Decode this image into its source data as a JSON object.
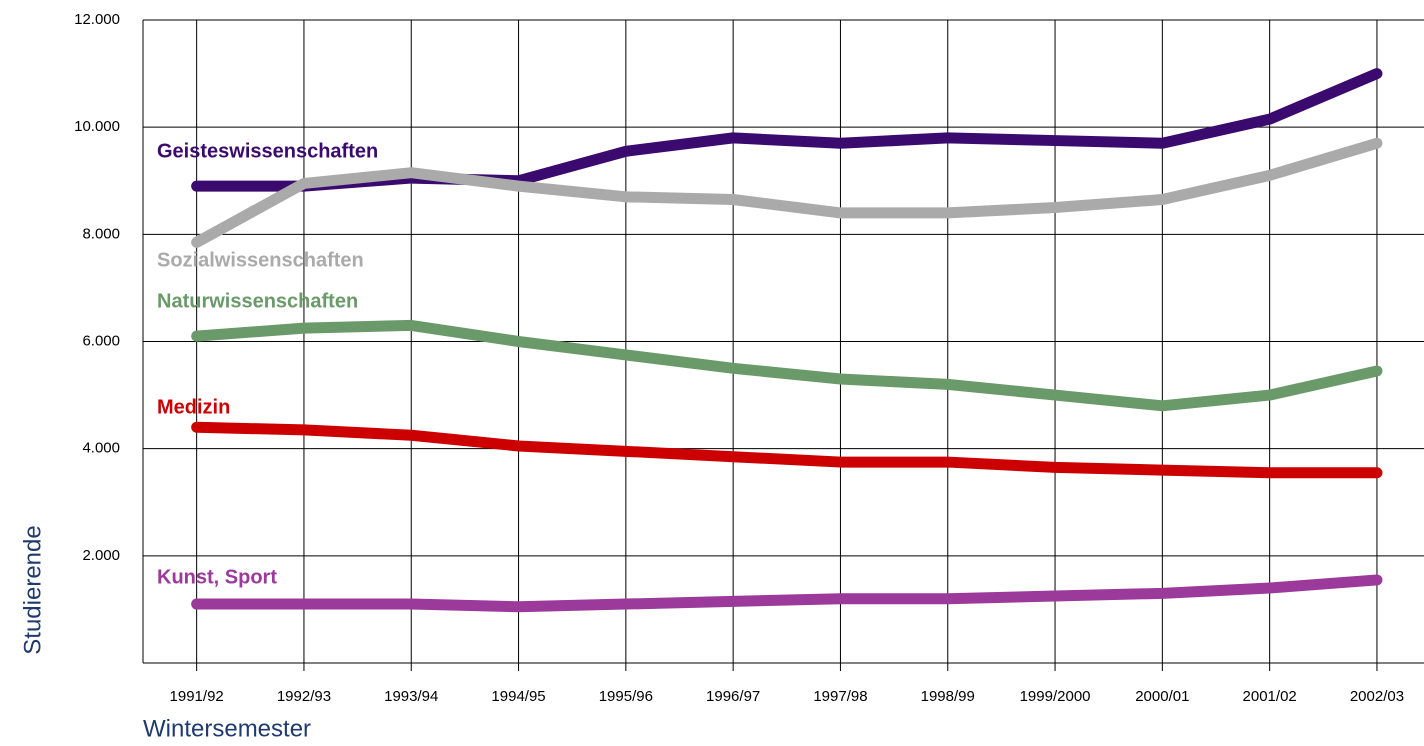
{
  "chart_data": {
    "type": "line",
    "x_label": "Wintersemester",
    "y_label": "Studierende",
    "categories": [
      "1991/92",
      "1992/93",
      "1993/94",
      "1994/95",
      "1995/96",
      "1996/97",
      "1997/98",
      "1998/99",
      "1999/2000",
      "2000/01",
      "2001/02",
      "2002/03"
    ],
    "series": [
      {
        "name": "Geisteswissenschaften",
        "color": "#3a0a6e",
        "values": [
          8900,
          8900,
          9050,
          9000,
          9550,
          9800,
          9700,
          9800,
          9750,
          9700,
          10150,
          11000
        ]
      },
      {
        "name": "Sozialwissenschaften",
        "color": "#aaaaaa",
        "values": [
          7850,
          8950,
          9150,
          8900,
          8700,
          8650,
          8400,
          8400,
          8500,
          8650,
          9100,
          9700
        ]
      },
      {
        "name": "Naturwissenschaften",
        "color": "#6a9a6a",
        "values": [
          6100,
          6250,
          6300,
          6000,
          5750,
          5500,
          5300,
          5200,
          5000,
          4800,
          5000,
          5450
        ]
      },
      {
        "name": "Medizin",
        "color": "#cc0000",
        "values": [
          4400,
          4350,
          4250,
          4050,
          3950,
          3850,
          3750,
          3750,
          3650,
          3600,
          3550,
          3550
        ]
      },
      {
        "name": "Kunst, Sport",
        "color": "#9b3a9b",
        "values": [
          1100,
          1100,
          1100,
          1050,
          1100,
          1150,
          1200,
          1200,
          1250,
          1300,
          1400,
          1550
        ]
      }
    ],
    "ylim": [
      0,
      12000
    ],
    "yticks": [
      {
        "value": 2000,
        "label": "2.000"
      },
      {
        "value": 4000,
        "label": "4.000"
      },
      {
        "value": 6000,
        "label": "6.000"
      },
      {
        "value": 8000,
        "label": "8.000"
      },
      {
        "value": 10000,
        "label": "10.000"
      },
      {
        "value": 12000,
        "label": "12.000"
      }
    ],
    "grid": true
  }
}
